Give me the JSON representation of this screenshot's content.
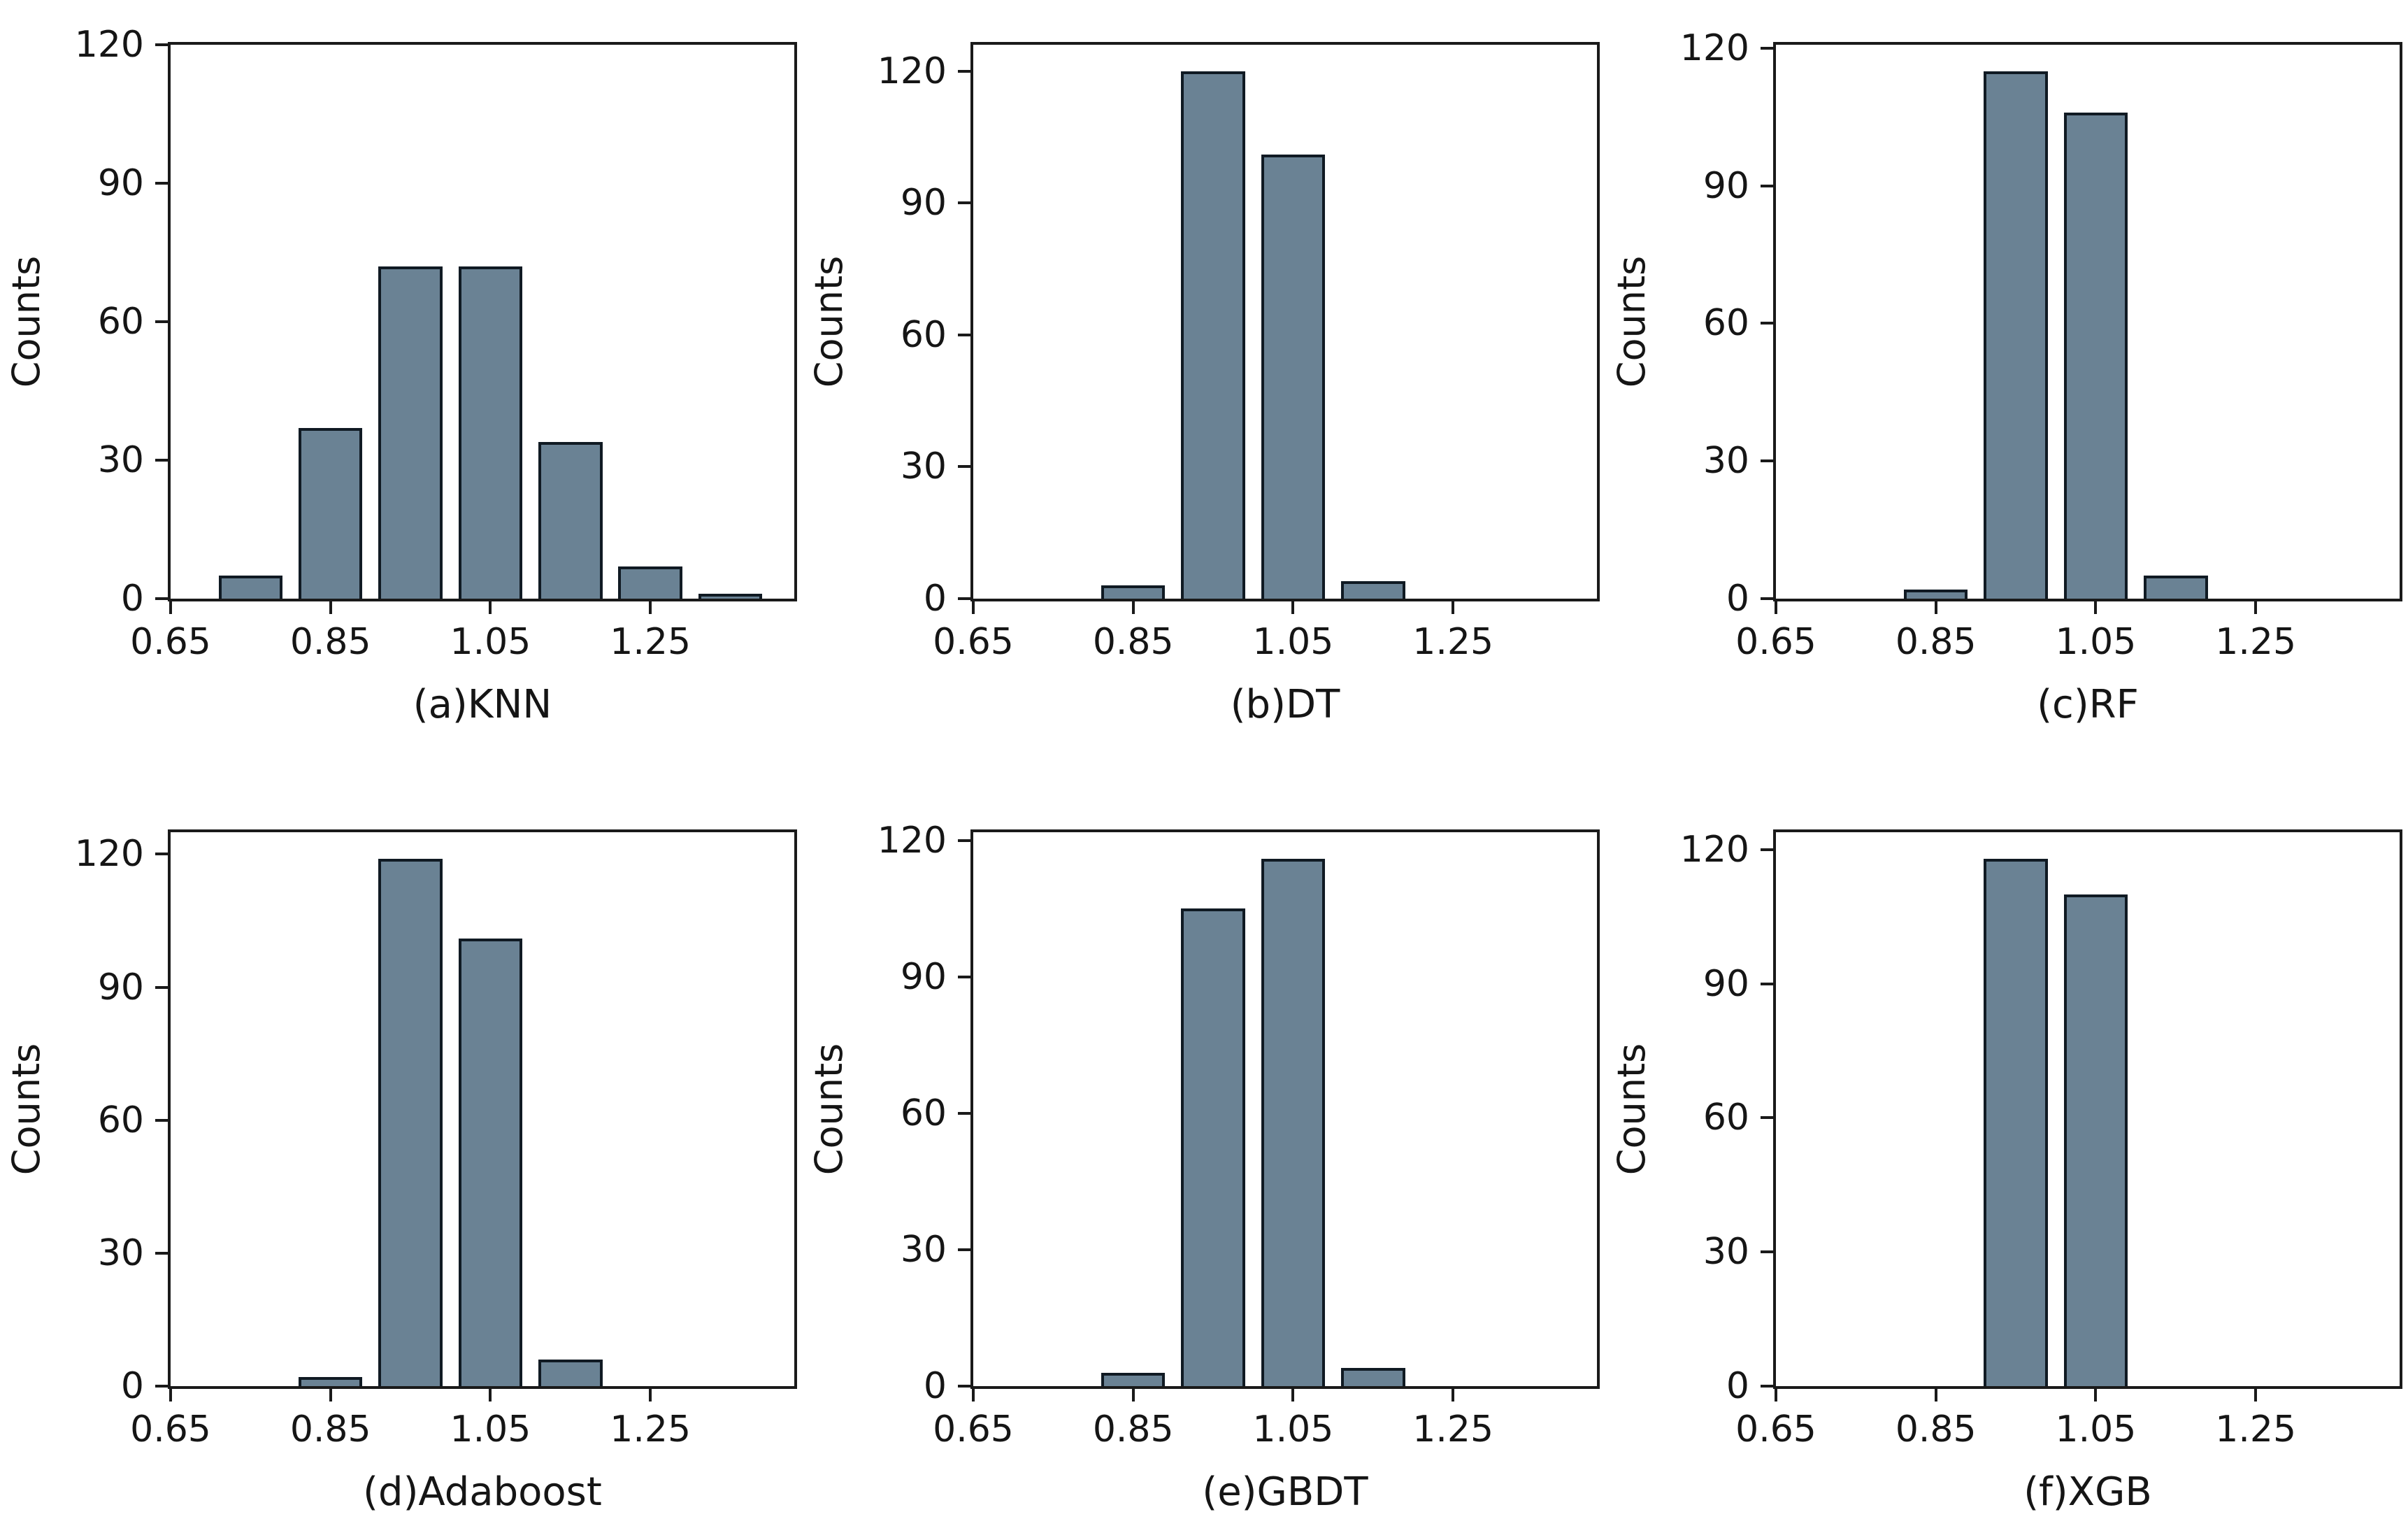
{
  "figure": {
    "background": "#ffffff",
    "text_color": "#151515",
    "axis_color": "#1a1a1a",
    "bar_fill_color": "#6a8294",
    "bar_edge_color": "#101a23"
  },
  "chart_data": [
    {
      "type": "bar",
      "subtype": "histogram",
      "caption": "(a)KNN",
      "ylabel": "Counts",
      "xlim": [
        0.65,
        1.43
      ],
      "ylim": [
        0,
        120
      ],
      "xticks": [
        0.65,
        0.85,
        1.05,
        1.25
      ],
      "xtick_labels": [
        "0.65",
        "0.85",
        "1.05",
        "1.25"
      ],
      "yticks": [
        0,
        30,
        60,
        90,
        120
      ],
      "ytick_labels": [
        "0",
        "30",
        "60",
        "90",
        "120"
      ],
      "bin_width": 0.1,
      "bar_width": 0.08,
      "centers": [
        0.75,
        0.85,
        0.95,
        1.05,
        1.15,
        1.25,
        1.35
      ],
      "values": [
        5,
        37,
        72,
        72,
        34,
        7,
        1
      ],
      "grid": false,
      "legend": false
    },
    {
      "type": "bar",
      "subtype": "histogram",
      "caption": "(b)DT",
      "ylabel": "Counts",
      "xlim": [
        0.65,
        1.43
      ],
      "ylim": [
        0,
        126
      ],
      "xticks": [
        0.65,
        0.85,
        1.05,
        1.25
      ],
      "xtick_labels": [
        "0.65",
        "0.85",
        "1.05",
        "1.25"
      ],
      "yticks": [
        0,
        30,
        60,
        90,
        120
      ],
      "ytick_labels": [
        "0",
        "30",
        "60",
        "90",
        "120"
      ],
      "bin_width": 0.1,
      "bar_width": 0.08,
      "centers": [
        0.75,
        0.85,
        0.95,
        1.05,
        1.15,
        1.25,
        1.35
      ],
      "values": [
        0,
        3,
        120,
        101,
        4,
        0,
        0
      ],
      "grid": false,
      "legend": false
    },
    {
      "type": "bar",
      "subtype": "histogram",
      "caption": "(c)RF",
      "ylabel": "Counts",
      "xlim": [
        0.65,
        1.43
      ],
      "ylim": [
        0,
        120.75
      ],
      "xticks": [
        0.65,
        0.85,
        1.05,
        1.25
      ],
      "xtick_labels": [
        "0.65",
        "0.85",
        "1.05",
        "1.25"
      ],
      "yticks": [
        0,
        30,
        60,
        90,
        120
      ],
      "ytick_labels": [
        "0",
        "30",
        "60",
        "90",
        "120"
      ],
      "bin_width": 0.1,
      "bar_width": 0.08,
      "centers": [
        0.75,
        0.85,
        0.95,
        1.05,
        1.15,
        1.25,
        1.35
      ],
      "values": [
        0,
        2,
        115,
        106,
        5,
        0,
        0
      ],
      "grid": false,
      "legend": false
    },
    {
      "type": "bar",
      "subtype": "histogram",
      "caption": "(d)Adaboost",
      "ylabel": "Counts",
      "xlim": [
        0.65,
        1.43
      ],
      "ylim": [
        0,
        124.95
      ],
      "xticks": [
        0.65,
        0.85,
        1.05,
        1.25
      ],
      "xtick_labels": [
        "0.65",
        "0.85",
        "1.05",
        "1.25"
      ],
      "yticks": [
        0,
        30,
        60,
        90,
        120
      ],
      "ytick_labels": [
        "0",
        "30",
        "60",
        "90",
        "120"
      ],
      "bin_width": 0.1,
      "bar_width": 0.08,
      "centers": [
        0.75,
        0.85,
        0.95,
        1.05,
        1.15,
        1.25,
        1.35
      ],
      "values": [
        0,
        2,
        119,
        101,
        6,
        0,
        0
      ],
      "grid": false,
      "legend": false
    },
    {
      "type": "bar",
      "subtype": "histogram",
      "caption": "(e)GBDT",
      "ylabel": "Counts",
      "xlim": [
        0.65,
        1.43
      ],
      "ylim": [
        0,
        121.8
      ],
      "xticks": [
        0.65,
        0.85,
        1.05,
        1.25
      ],
      "xtick_labels": [
        "0.65",
        "0.85",
        "1.05",
        "1.25"
      ],
      "yticks": [
        0,
        30,
        60,
        90,
        120
      ],
      "ytick_labels": [
        "0",
        "30",
        "60",
        "90",
        "120"
      ],
      "bin_width": 0.1,
      "bar_width": 0.08,
      "centers": [
        0.75,
        0.85,
        0.95,
        1.05,
        1.15,
        1.25,
        1.35
      ],
      "values": [
        0,
        3,
        105,
        116,
        4,
        0,
        0
      ],
      "grid": false,
      "legend": false
    },
    {
      "type": "bar",
      "subtype": "histogram",
      "caption": "(f)XGB",
      "ylabel": "Counts",
      "xlim": [
        0.65,
        1.43
      ],
      "ylim": [
        0,
        123.9
      ],
      "xticks": [
        0.65,
        0.85,
        1.05,
        1.25
      ],
      "xtick_labels": [
        "0.65",
        "0.85",
        "1.05",
        "1.25"
      ],
      "yticks": [
        0,
        30,
        60,
        90,
        120
      ],
      "ytick_labels": [
        "0",
        "30",
        "60",
        "90",
        "120"
      ],
      "bin_width": 0.1,
      "bar_width": 0.08,
      "centers": [
        0.75,
        0.85,
        0.95,
        1.05,
        1.15,
        1.25,
        1.35
      ],
      "values": [
        0,
        0,
        118,
        110,
        0,
        0,
        0
      ],
      "grid": false,
      "legend": false
    }
  ]
}
